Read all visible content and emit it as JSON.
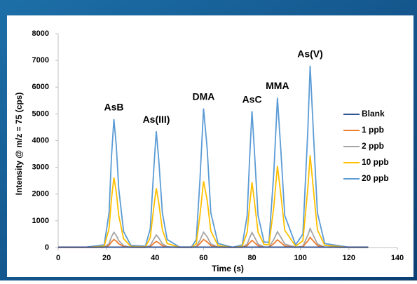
{
  "chart_data": {
    "type": "line",
    "xlabel": "Time (s)",
    "ylabel": "Intensity @ m/z = 75 (cps)",
    "annotations": [
      "AsB",
      "As(III)",
      "DMA",
      "AsC",
      "MMA",
      "As(V)"
    ],
    "x": [
      0,
      10,
      19,
      21,
      22,
      23,
      24,
      25,
      27,
      30,
      36,
      38,
      39.5,
      40.5,
      41.5,
      43,
      45,
      50,
      55,
      57,
      58.5,
      60,
      61.5,
      63,
      66,
      72,
      76,
      78,
      79,
      80,
      81,
      82.5,
      85,
      87,
      89,
      90.5,
      92,
      93.5,
      98,
      101,
      103,
      104,
      105.5,
      107,
      110,
      120,
      128
    ],
    "series": [
      {
        "name": "Blank",
        "color": "#2f5597",
        "values": [
          15,
          15,
          15,
          15,
          15,
          15,
          15,
          15,
          15,
          15,
          15,
          15,
          15,
          15,
          15,
          15,
          15,
          15,
          15,
          15,
          15,
          15,
          15,
          15,
          15,
          15,
          15,
          15,
          15,
          15,
          15,
          15,
          15,
          15,
          15,
          15,
          15,
          15,
          15,
          15,
          15,
          15,
          15,
          15,
          15,
          15,
          15
        ]
      },
      {
        "name": "1 ppb",
        "color": "#ed7d31",
        "values": [
          0,
          0,
          5,
          80,
          210,
          300,
          240,
          140,
          40,
          5,
          3,
          35,
          160,
          230,
          175,
          70,
          15,
          3,
          3,
          20,
          145,
          300,
          210,
          75,
          8,
          3,
          5,
          65,
          175,
          270,
          190,
          65,
          10,
          10,
          145,
          290,
          180,
          60,
          5,
          30,
          240,
          380,
          225,
          75,
          10,
          3,
          3
        ]
      },
      {
        "name": "2 ppb",
        "color": "#a5a5a5",
        "values": [
          0,
          0,
          10,
          150,
          400,
          570,
          450,
          260,
          70,
          10,
          5,
          75,
          320,
          470,
          360,
          140,
          30,
          5,
          5,
          35,
          270,
          570,
          400,
          140,
          15,
          5,
          10,
          130,
          360,
          560,
          400,
          130,
          20,
          20,
          300,
          590,
          370,
          130,
          10,
          50,
          450,
          710,
          420,
          135,
          15,
          5,
          5
        ]
      },
      {
        "name": "10 ppb",
        "color": "#ffc000",
        "values": [
          0,
          0,
          50,
          710,
          1830,
          2620,
          2070,
          1200,
          330,
          40,
          25,
          360,
          1530,
          2220,
          1680,
          660,
          150,
          10,
          10,
          140,
          1190,
          2480,
          1770,
          620,
          70,
          5,
          50,
          570,
          1580,
          2440,
          1720,
          570,
          110,
          110,
          1520,
          3050,
          1900,
          650,
          50,
          250,
          2180,
          3450,
          2030,
          660,
          80,
          5,
          0
        ]
      },
      {
        "name": "20 ppb",
        "color": "#5b9bd5",
        "values": [
          0,
          0,
          100,
          1300,
          3400,
          4800,
          3800,
          2200,
          600,
          80,
          50,
          700,
          3000,
          4350,
          3300,
          1300,
          300,
          20,
          20,
          300,
          2500,
          5200,
          3700,
          1300,
          150,
          10,
          100,
          1200,
          3300,
          5100,
          3600,
          1200,
          200,
          200,
          2800,
          5600,
          3500,
          1200,
          100,
          500,
          4300,
          6800,
          4000,
          1300,
          150,
          10,
          5
        ]
      }
    ],
    "xlim": [
      0,
      140
    ],
    "xticks": [
      0,
      20,
      40,
      60,
      80,
      100,
      120,
      140
    ],
    "ylim": [
      0,
      8000
    ],
    "yticks": [
      0,
      1000,
      2000,
      3000,
      4000,
      5000,
      6000,
      7000,
      8000
    ],
    "legend": "right"
  }
}
